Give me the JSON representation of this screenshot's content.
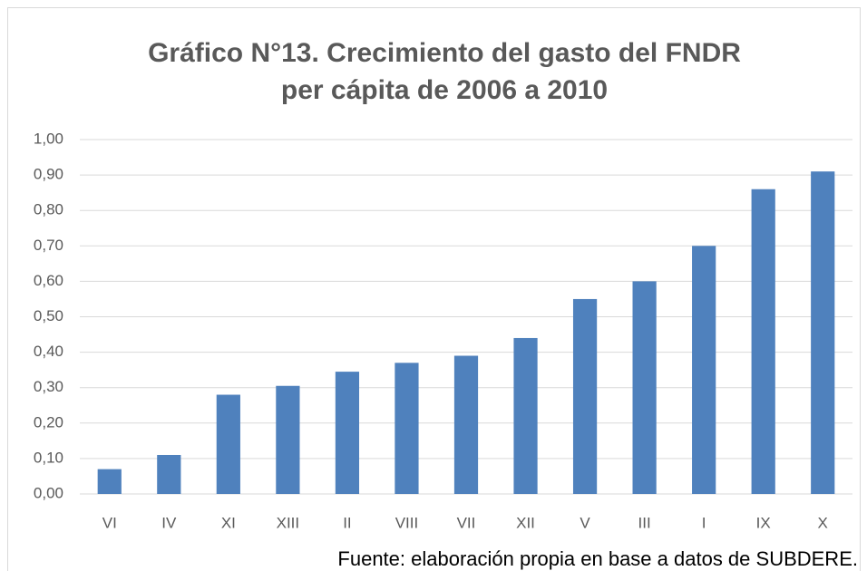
{
  "chart_data": {
    "type": "bar",
    "title": [
      "Gráfico N°13. Crecimiento del gasto del FNDR",
      "per cápita de 2006 a 2010"
    ],
    "categories": [
      "VI",
      "IV",
      "XI",
      "XIII",
      "II",
      "VIII",
      "VII",
      "XII",
      "V",
      "III",
      "I",
      "IX",
      "X"
    ],
    "values": [
      0.07,
      0.11,
      0.28,
      0.305,
      0.345,
      0.37,
      0.39,
      0.44,
      0.55,
      0.6,
      0.7,
      0.86,
      0.91
    ],
    "color": "#4f81bd",
    "ylim": [
      0,
      1
    ],
    "yticks": [
      {
        "value": 0,
        "label": "0,00"
      },
      {
        "value": 0.1,
        "label": "0,10"
      },
      {
        "value": 0.2,
        "label": "0,20"
      },
      {
        "value": 0.3,
        "label": "0,30"
      },
      {
        "value": 0.4,
        "label": "0,40"
      },
      {
        "value": 0.5,
        "label": "0,50"
      },
      {
        "value": 0.6,
        "label": "0,60"
      },
      {
        "value": 0.7,
        "label": "0,70"
      },
      {
        "value": 0.8,
        "label": "0,80"
      },
      {
        "value": 0.9,
        "label": "0,90"
      },
      {
        "value": 1,
        "label": "1,00"
      }
    ],
    "grid": true,
    "source": "Fuente: elaboración propia en base a datos de SUBDERE."
  }
}
